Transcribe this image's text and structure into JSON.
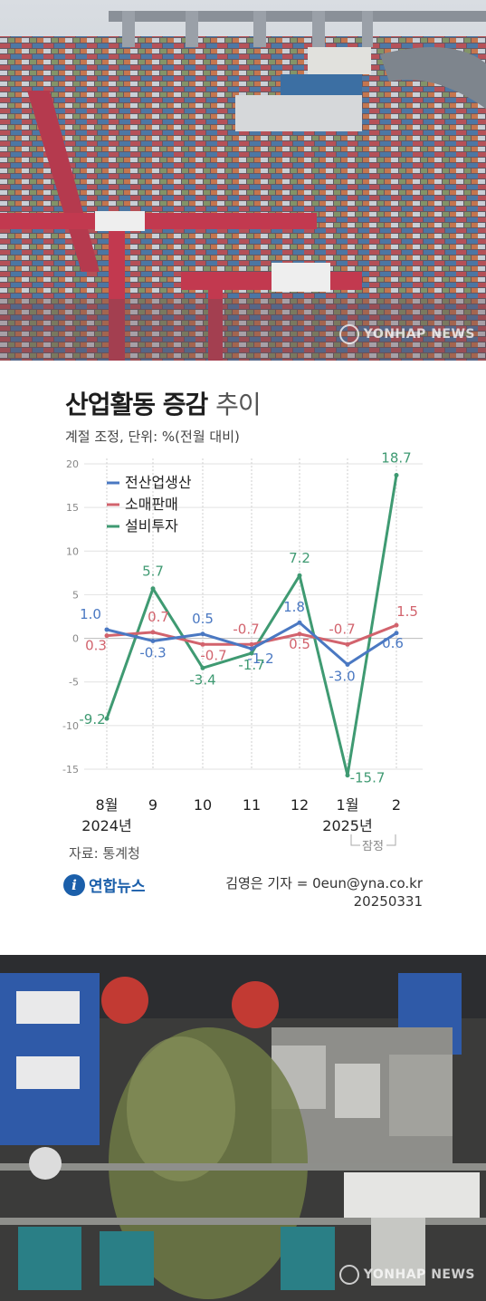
{
  "title_bold": "산업활동 증감",
  "title_light": "추이",
  "subtitle": "계절 조정, 단위: %(전월 대비)",
  "source": "자료: 통계청",
  "agency": "연합뉴스",
  "reporter": "김영은 기자 = 0eun@yna.co.kr",
  "date_code": "20250331",
  "watermark_top": "YONHAP NEWS",
  "watermark_bottom": "YONHAP NEWS",
  "preliminary_label": "잠정",
  "chart_data": {
    "type": "line",
    "title": "산업활동 증감 추이",
    "categories": [
      "8월",
      "9",
      "10",
      "11",
      "12",
      "1월",
      "2"
    ],
    "year_labels": [
      {
        "at": 0,
        "text": "2024년"
      },
      {
        "at": 5,
        "text": "2025년"
      }
    ],
    "ylim": [
      -15,
      20
    ],
    "yticks": [
      20,
      15,
      10,
      5,
      0,
      -5,
      -10,
      -15
    ],
    "grid": true,
    "legend_position": "top-left",
    "series": [
      {
        "name": "전산업생산",
        "color": "#4a78c2",
        "values": [
          1.0,
          -0.3,
          0.5,
          -1.2,
          1.8,
          -3.0,
          0.6
        ],
        "labels": [
          "1.0",
          "-0.3",
          "0.5",
          "-1.2",
          "1.8",
          "-3.0",
          "0.6"
        ]
      },
      {
        "name": "소매판매",
        "color": "#d2636d",
        "values": [
          0.3,
          0.7,
          -0.7,
          -0.7,
          0.5,
          -0.7,
          1.5
        ],
        "labels": [
          "0.3",
          "0.7",
          "-0.7",
          "-0.7",
          "0.5",
          "-0.7",
          "1.5"
        ]
      },
      {
        "name": "설비투자",
        "color": "#3f9a72",
        "values": [
          -9.2,
          5.7,
          -3.4,
          -1.7,
          7.2,
          -15.7,
          18.7
        ],
        "labels": [
          "-9.2",
          "5.7",
          "-3.4",
          "-1.7",
          "7.2",
          "-15.7",
          "18.7"
        ]
      }
    ]
  }
}
